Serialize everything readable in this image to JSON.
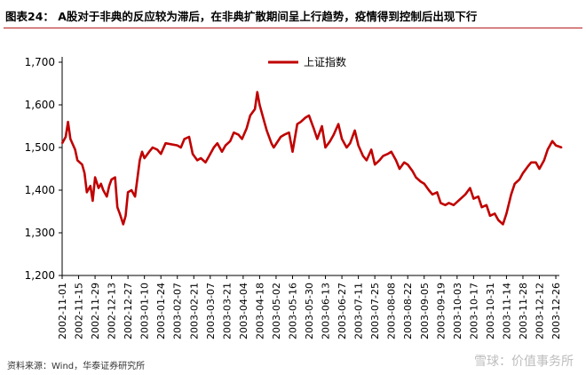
{
  "title": "图表24：   A股对于非典的反应较为滞后，在非典扩散期间呈上行趋势，疫情得到控制后出现下行",
  "source": "资料来源：Wind，华泰证券研究所",
  "watermark": "雪球：价值事务所",
  "colors": {
    "series": "#c00000",
    "accent": "#b71c1c",
    "axis": "#000000"
  },
  "chart_data": {
    "type": "line",
    "title": "",
    "xlabel": "",
    "ylabel": "",
    "ylim": [
      1200,
      1700
    ],
    "yticks": [
      1200,
      1300,
      1400,
      1500,
      1600,
      1700
    ],
    "ytick_labels": [
      "1,200",
      "1,300",
      "1,400",
      "1,500",
      "1,600",
      "1,700"
    ],
    "xticks": [
      "2002-11-01",
      "2002-11-15",
      "2002-11-29",
      "2002-12-13",
      "2002-12-27",
      "2003-01-10",
      "2003-01-24",
      "2003-02-07",
      "2003-02-21",
      "2003-03-07",
      "2003-03-21",
      "2003-04-04",
      "2003-04-18",
      "2003-05-02",
      "2003-05-16",
      "2003-05-30",
      "2003-06-13",
      "2003-06-27",
      "2003-07-11",
      "2003-07-25",
      "2003-08-08",
      "2003-08-22",
      "2003-09-05",
      "2003-09-19",
      "2003-10-03",
      "2003-10-17",
      "2003-10-31",
      "2003-11-14",
      "2003-11-28",
      "2003-12-12",
      "2003-12-26"
    ],
    "legend": {
      "position": "top-center"
    },
    "grid": false,
    "series": [
      {
        "name": "上证指数",
        "x": [
          "2002-11-01",
          "2002-11-04",
          "2002-11-06",
          "2002-11-08",
          "2002-11-12",
          "2002-11-14",
          "2002-11-18",
          "2002-11-20",
          "2002-11-22",
          "2002-11-25",
          "2002-11-27",
          "2002-11-29",
          "2002-12-02",
          "2002-12-04",
          "2002-12-06",
          "2002-12-09",
          "2002-12-11",
          "2002-12-13",
          "2002-12-16",
          "2002-12-18",
          "2002-12-20",
          "2002-12-23",
          "2002-12-25",
          "2002-12-27",
          "2002-12-30",
          "2003-01-02",
          "2003-01-06",
          "2003-01-08",
          "2003-01-10",
          "2003-01-14",
          "2003-01-17",
          "2003-01-21",
          "2003-01-24",
          "2003-01-28",
          "2003-02-07",
          "2003-02-10",
          "2003-02-13",
          "2003-02-17",
          "2003-02-20",
          "2003-02-24",
          "2003-02-27",
          "2003-03-03",
          "2003-03-06",
          "2003-03-10",
          "2003-03-13",
          "2003-03-17",
          "2003-03-20",
          "2003-03-24",
          "2003-03-27",
          "2003-03-31",
          "2003-04-03",
          "2003-04-07",
          "2003-04-10",
          "2003-04-14",
          "2003-04-16",
          "2003-04-18",
          "2003-04-22",
          "2003-04-24",
          "2003-04-28",
          "2003-04-30",
          "2003-05-06",
          "2003-05-09",
          "2003-05-13",
          "2003-05-16",
          "2003-05-20",
          "2003-05-23",
          "2003-05-27",
          "2003-05-30",
          "2003-06-03",
          "2003-06-06",
          "2003-06-10",
          "2003-06-13",
          "2003-06-17",
          "2003-06-20",
          "2003-06-24",
          "2003-06-27",
          "2003-07-01",
          "2003-07-04",
          "2003-07-08",
          "2003-07-11",
          "2003-07-15",
          "2003-07-18",
          "2003-07-22",
          "2003-07-25",
          "2003-07-29",
          "2003-08-01",
          "2003-08-05",
          "2003-08-08",
          "2003-08-12",
          "2003-08-15",
          "2003-08-19",
          "2003-08-22",
          "2003-08-26",
          "2003-08-29",
          "2003-09-02",
          "2003-09-05",
          "2003-09-09",
          "2003-09-12",
          "2003-09-16",
          "2003-09-19",
          "2003-09-23",
          "2003-09-26",
          "2003-09-30",
          "2003-10-10",
          "2003-10-14",
          "2003-10-17",
          "2003-10-21",
          "2003-10-24",
          "2003-10-28",
          "2003-10-31",
          "2003-11-04",
          "2003-11-07",
          "2003-11-11",
          "2003-11-14",
          "2003-11-18",
          "2003-11-21",
          "2003-11-25",
          "2003-11-28",
          "2003-12-02",
          "2003-12-05",
          "2003-12-09",
          "2003-12-12",
          "2003-12-16",
          "2003-12-19",
          "2003-12-23",
          "2003-12-26",
          "2003-12-31"
        ],
        "values": [
          1510,
          1525,
          1560,
          1520,
          1495,
          1470,
          1460,
          1440,
          1395,
          1410,
          1375,
          1430,
          1405,
          1415,
          1400,
          1385,
          1410,
          1425,
          1430,
          1360,
          1345,
          1320,
          1340,
          1395,
          1400,
          1385,
          1470,
          1490,
          1475,
          1490,
          1500,
          1495,
          1485,
          1510,
          1505,
          1500,
          1520,
          1525,
          1485,
          1470,
          1475,
          1465,
          1480,
          1500,
          1510,
          1490,
          1505,
          1515,
          1535,
          1530,
          1520,
          1545,
          1575,
          1590,
          1630,
          1600,
          1560,
          1540,
          1510,
          1500,
          1525,
          1530,
          1535,
          1490,
          1555,
          1560,
          1570,
          1575,
          1545,
          1520,
          1550,
          1500,
          1515,
          1530,
          1555,
          1520,
          1500,
          1510,
          1540,
          1505,
          1480,
          1470,
          1495,
          1460,
          1470,
          1480,
          1485,
          1490,
          1470,
          1450,
          1465,
          1460,
          1445,
          1430,
          1420,
          1415,
          1400,
          1390,
          1395,
          1370,
          1365,
          1370,
          1365,
          1390,
          1405,
          1380,
          1385,
          1360,
          1365,
          1340,
          1345,
          1330,
          1320,
          1345,
          1390,
          1415,
          1425,
          1440,
          1455,
          1465,
          1465,
          1450,
          1470,
          1495,
          1515,
          1505,
          1500
        ]
      }
    ]
  }
}
